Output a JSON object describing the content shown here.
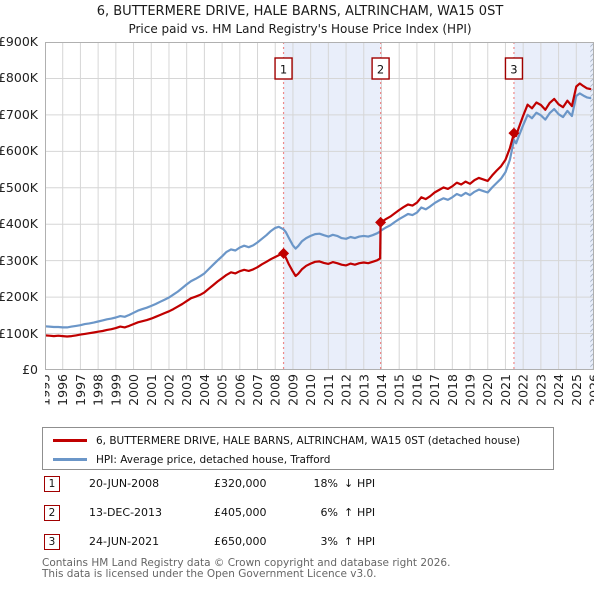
{
  "title": "6, BUTTERMERE DRIVE, HALE BARNS, ALTRINCHAM, WA15 0ST",
  "subtitle": "Price paid vs. HM Land Registry's House Price Index (HPI)",
  "legend": {
    "items": [
      {
        "label": "6, BUTTERMERE DRIVE, HALE BARNS, ALTRINCHAM, WA15 0ST (detached house)",
        "color": "#c00000"
      },
      {
        "label": "HPI: Average price, detached house, Trafford",
        "color": "#6b96c8"
      }
    ]
  },
  "transactions": [
    {
      "num": "1",
      "date": "20-JUN-2008",
      "price": "£320,000",
      "pct": "18%",
      "dir": "↓",
      "ref": "HPI"
    },
    {
      "num": "2",
      "date": "13-DEC-2013",
      "price": "£405,000",
      "pct": "6%",
      "dir": "↑",
      "ref": "HPI"
    },
    {
      "num": "3",
      "date": "24-JUN-2021",
      "price": "£650,000",
      "pct": "3%",
      "dir": "↑",
      "ref": "HPI"
    }
  ],
  "footer": {
    "line1": "Contains HM Land Registry data © Crown copyright and database right 2026.",
    "line2": "This data is licensed under the Open Government Licence v3.0."
  },
  "chart_data": {
    "type": "line",
    "title": "6, BUTTERMERE DRIVE, HALE BARNS, ALTRINCHAM, WA15 0ST",
    "subtitle": "Price paid vs. HM Land Registry's House Price Index (HPI)",
    "xlabel": "",
    "ylabel": "",
    "x_range": [
      1995,
      2026
    ],
    "y_range_k": [
      0,
      900
    ],
    "grid": true,
    "legend_position": "below",
    "y_ticks": [
      {
        "v": 900,
        "label": "£900K"
      },
      {
        "v": 800,
        "label": "£800K"
      },
      {
        "v": 700,
        "label": "£700K"
      },
      {
        "v": 600,
        "label": "£600K"
      },
      {
        "v": 500,
        "label": "£500K"
      },
      {
        "v": 400,
        "label": "£400K"
      },
      {
        "v": 300,
        "label": "£300K"
      },
      {
        "v": 200,
        "label": "£200K"
      },
      {
        "v": 100,
        "label": "£100K"
      },
      {
        "v": 0,
        "label": "£0"
      }
    ],
    "x_ticks": [
      1995,
      1996,
      1997,
      1998,
      1999,
      2000,
      2001,
      2002,
      2003,
      2004,
      2005,
      2006,
      2007,
      2008,
      2009,
      2010,
      2011,
      2012,
      2013,
      2014,
      2015,
      2016,
      2017,
      2018,
      2019,
      2020,
      2021,
      2022,
      2023,
      2024,
      2025,
      2026
    ],
    "series": [
      {
        "name": "HPI: Average price, detached house, Trafford",
        "color": "#6b96c8",
        "width": 2.2,
        "units": "GBP_thousands",
        "points": [
          [
            1995.0,
            120
          ],
          [
            1995.25,
            119
          ],
          [
            1995.5,
            118
          ],
          [
            1995.75,
            118
          ],
          [
            1996.0,
            117
          ],
          [
            1996.25,
            117
          ],
          [
            1996.5,
            119
          ],
          [
            1996.75,
            121
          ],
          [
            1997.0,
            123
          ],
          [
            1997.25,
            126
          ],
          [
            1997.5,
            128
          ],
          [
            1997.75,
            130
          ],
          [
            1998.0,
            133
          ],
          [
            1998.25,
            136
          ],
          [
            1998.5,
            139
          ],
          [
            1998.75,
            141
          ],
          [
            1999.0,
            144
          ],
          [
            1999.25,
            148
          ],
          [
            1999.5,
            146
          ],
          [
            1999.75,
            151
          ],
          [
            2000.0,
            157
          ],
          [
            2000.25,
            163
          ],
          [
            2000.5,
            167
          ],
          [
            2000.75,
            171
          ],
          [
            2001.0,
            176
          ],
          [
            2001.25,
            181
          ],
          [
            2001.5,
            187
          ],
          [
            2001.75,
            193
          ],
          [
            2002.0,
            199
          ],
          [
            2002.25,
            207
          ],
          [
            2002.5,
            215
          ],
          [
            2002.75,
            225
          ],
          [
            2003.0,
            235
          ],
          [
            2003.25,
            244
          ],
          [
            2003.5,
            250
          ],
          [
            2003.75,
            257
          ],
          [
            2004.0,
            265
          ],
          [
            2004.25,
            277
          ],
          [
            2004.5,
            289
          ],
          [
            2004.75,
            301
          ],
          [
            2005.0,
            312
          ],
          [
            2005.25,
            324
          ],
          [
            2005.5,
            331
          ],
          [
            2005.75,
            328
          ],
          [
            2006.0,
            336
          ],
          [
            2006.25,
            341
          ],
          [
            2006.5,
            337
          ],
          [
            2006.75,
            342
          ],
          [
            2007.0,
            350
          ],
          [
            2007.25,
            360
          ],
          [
            2007.5,
            370
          ],
          [
            2007.75,
            381
          ],
          [
            2008.0,
            390
          ],
          [
            2008.2,
            393
          ],
          [
            2008.47,
            386
          ],
          [
            2008.6,
            378
          ],
          [
            2008.75,
            364
          ],
          [
            2009.0,
            342
          ],
          [
            2009.15,
            333
          ],
          [
            2009.3,
            340
          ],
          [
            2009.5,
            353
          ],
          [
            2009.75,
            362
          ],
          [
            2010.0,
            368
          ],
          [
            2010.25,
            373
          ],
          [
            2010.5,
            374
          ],
          [
            2010.75,
            370
          ],
          [
            2011.0,
            366
          ],
          [
            2011.25,
            371
          ],
          [
            2011.5,
            368
          ],
          [
            2011.75,
            362
          ],
          [
            2012.0,
            360
          ],
          [
            2012.25,
            365
          ],
          [
            2012.5,
            362
          ],
          [
            2012.75,
            366
          ],
          [
            2013.0,
            368
          ],
          [
            2013.25,
            366
          ],
          [
            2013.5,
            370
          ],
          [
            2013.75,
            375
          ],
          [
            2013.92,
            380
          ],
          [
            2013.95,
            382
          ],
          [
            2014.25,
            391
          ],
          [
            2014.5,
            397
          ],
          [
            2014.75,
            406
          ],
          [
            2015.0,
            414
          ],
          [
            2015.25,
            421
          ],
          [
            2015.5,
            428
          ],
          [
            2015.75,
            425
          ],
          [
            2016.0,
            432
          ],
          [
            2016.25,
            446
          ],
          [
            2016.5,
            441
          ],
          [
            2016.75,
            449
          ],
          [
            2017.0,
            458
          ],
          [
            2017.25,
            465
          ],
          [
            2017.5,
            471
          ],
          [
            2017.75,
            467
          ],
          [
            2018.0,
            474
          ],
          [
            2018.25,
            483
          ],
          [
            2018.5,
            478
          ],
          [
            2018.75,
            486
          ],
          [
            2019.0,
            480
          ],
          [
            2019.25,
            489
          ],
          [
            2019.5,
            495
          ],
          [
            2019.75,
            491
          ],
          [
            2020.0,
            487
          ],
          [
            2020.25,
            501
          ],
          [
            2020.5,
            513
          ],
          [
            2020.75,
            525
          ],
          [
            2021.0,
            543
          ],
          [
            2021.25,
            577
          ],
          [
            2021.48,
            631
          ],
          [
            2021.6,
            622
          ],
          [
            2021.75,
            641
          ],
          [
            2022.0,
            672
          ],
          [
            2022.25,
            700
          ],
          [
            2022.5,
            691
          ],
          [
            2022.75,
            706
          ],
          [
            2023.0,
            699
          ],
          [
            2023.25,
            687
          ],
          [
            2023.5,
            705
          ],
          [
            2023.75,
            716
          ],
          [
            2024.0,
            702
          ],
          [
            2024.25,
            694
          ],
          [
            2024.5,
            711
          ],
          [
            2024.75,
            697
          ],
          [
            2025.0,
            752
          ],
          [
            2025.2,
            759
          ],
          [
            2025.4,
            753
          ],
          [
            2025.6,
            748
          ],
          [
            2025.79,
            746
          ]
        ]
      },
      {
        "name": "6, BUTTERMERE DRIVE, HALE BARNS, ALTRINCHAM, WA15 0ST (detached house)",
        "color": "#c00000",
        "width": 2.2,
        "units": "GBP_thousands",
        "points": [
          [
            1995.0,
            95
          ],
          [
            1995.25,
            94
          ],
          [
            1995.5,
            93
          ],
          [
            1995.75,
            94
          ],
          [
            1996.0,
            93
          ],
          [
            1996.25,
            92
          ],
          [
            1996.5,
            93
          ],
          [
            1996.75,
            95
          ],
          [
            1997.0,
            97
          ],
          [
            1997.25,
            99
          ],
          [
            1997.5,
            101
          ],
          [
            1997.75,
            103
          ],
          [
            1998.0,
            105
          ],
          [
            1998.25,
            107
          ],
          [
            1998.5,
            110
          ],
          [
            1998.75,
            112
          ],
          [
            1999.0,
            115
          ],
          [
            1999.25,
            119
          ],
          [
            1999.5,
            117
          ],
          [
            1999.75,
            121
          ],
          [
            2000.0,
            126
          ],
          [
            2000.25,
            131
          ],
          [
            2000.5,
            134
          ],
          [
            2000.75,
            137
          ],
          [
            2001.0,
            141
          ],
          [
            2001.25,
            146
          ],
          [
            2001.5,
            151
          ],
          [
            2001.75,
            156
          ],
          [
            2002.0,
            161
          ],
          [
            2002.25,
            167
          ],
          [
            2002.5,
            174
          ],
          [
            2002.75,
            181
          ],
          [
            2003.0,
            189
          ],
          [
            2003.25,
            197
          ],
          [
            2003.5,
            201
          ],
          [
            2003.75,
            206
          ],
          [
            2004.0,
            213
          ],
          [
            2004.25,
            223
          ],
          [
            2004.5,
            233
          ],
          [
            2004.75,
            243
          ],
          [
            2005.0,
            252
          ],
          [
            2005.25,
            261
          ],
          [
            2005.5,
            268
          ],
          [
            2005.75,
            265
          ],
          [
            2006.0,
            271
          ],
          [
            2006.25,
            275
          ],
          [
            2006.5,
            272
          ],
          [
            2006.75,
            276
          ],
          [
            2007.0,
            282
          ],
          [
            2007.25,
            290
          ],
          [
            2007.5,
            297
          ],
          [
            2007.75,
            304
          ],
          [
            2008.0,
            310
          ],
          [
            2008.25,
            316
          ],
          [
            2008.47,
            320
          ],
          [
            2008.6,
            308
          ],
          [
            2008.75,
            292
          ],
          [
            2009.0,
            270
          ],
          [
            2009.15,
            258
          ],
          [
            2009.3,
            264
          ],
          [
            2009.5,
            276
          ],
          [
            2009.75,
            286
          ],
          [
            2010.0,
            292
          ],
          [
            2010.25,
            297
          ],
          [
            2010.5,
            298
          ],
          [
            2010.75,
            294
          ],
          [
            2011.0,
            291
          ],
          [
            2011.25,
            296
          ],
          [
            2011.5,
            293
          ],
          [
            2011.75,
            289
          ],
          [
            2012.0,
            287
          ],
          [
            2012.25,
            292
          ],
          [
            2012.5,
            289
          ],
          [
            2012.75,
            293
          ],
          [
            2013.0,
            295
          ],
          [
            2013.25,
            293
          ],
          [
            2013.5,
            297
          ],
          [
            2013.75,
            301
          ],
          [
            2013.92,
            306
          ],
          [
            2013.95,
            405
          ],
          [
            2014.25,
            414
          ],
          [
            2014.5,
            421
          ],
          [
            2014.75,
            430
          ],
          [
            2015.0,
            439
          ],
          [
            2015.25,
            447
          ],
          [
            2015.5,
            454
          ],
          [
            2015.75,
            451
          ],
          [
            2016.0,
            459
          ],
          [
            2016.25,
            474
          ],
          [
            2016.5,
            469
          ],
          [
            2016.75,
            477
          ],
          [
            2017.0,
            487
          ],
          [
            2017.25,
            494
          ],
          [
            2017.5,
            501
          ],
          [
            2017.75,
            497
          ],
          [
            2018.0,
            504
          ],
          [
            2018.25,
            514
          ],
          [
            2018.5,
            509
          ],
          [
            2018.75,
            517
          ],
          [
            2019.0,
            511
          ],
          [
            2019.25,
            521
          ],
          [
            2019.5,
            527
          ],
          [
            2019.75,
            523
          ],
          [
            2020.0,
            519
          ],
          [
            2020.25,
            534
          ],
          [
            2020.5,
            547
          ],
          [
            2020.75,
            559
          ],
          [
            2021.0,
            577
          ],
          [
            2021.25,
            609
          ],
          [
            2021.48,
            650
          ],
          [
            2021.6,
            642
          ],
          [
            2021.75,
            664
          ],
          [
            2022.0,
            698
          ],
          [
            2022.25,
            728
          ],
          [
            2022.5,
            718
          ],
          [
            2022.75,
            734
          ],
          [
            2023.0,
            727
          ],
          [
            2023.25,
            714
          ],
          [
            2023.5,
            733
          ],
          [
            2023.75,
            744
          ],
          [
            2024.0,
            729
          ],
          [
            2024.25,
            721
          ],
          [
            2024.5,
            739
          ],
          [
            2024.75,
            724
          ],
          [
            2025.0,
            778
          ],
          [
            2025.2,
            786
          ],
          [
            2025.4,
            779
          ],
          [
            2025.6,
            773
          ],
          [
            2025.79,
            771
          ]
        ]
      }
    ],
    "markers": [
      {
        "label": "1",
        "x": 2008.47,
        "value_k": 320,
        "date": "20-JUN-2008",
        "price": "£320,000"
      },
      {
        "label": "2",
        "x": 2013.95,
        "value_k": 405,
        "date": "13-DEC-2013",
        "price": "£405,000"
      },
      {
        "label": "3",
        "x": 2021.48,
        "value_k": 650,
        "date": "24-JUN-2021",
        "price": "£650,000"
      }
    ],
    "shaded_regions": [
      [
        2008.47,
        2013.95
      ],
      [
        2021.48,
        2026
      ]
    ],
    "hatch_region": [
      2025.79,
      2026
    ],
    "colors": {
      "property_line": "#c00000",
      "hpi_line": "#6b96c8",
      "dashed_marker_line": "#ee8888",
      "marker_box_border": "#a00000",
      "shade_fill": "#e9eefa",
      "hatch_line": "#a7b4c6",
      "grid": "#d6d6d6",
      "plot_border": "#b0b0b0"
    }
  }
}
